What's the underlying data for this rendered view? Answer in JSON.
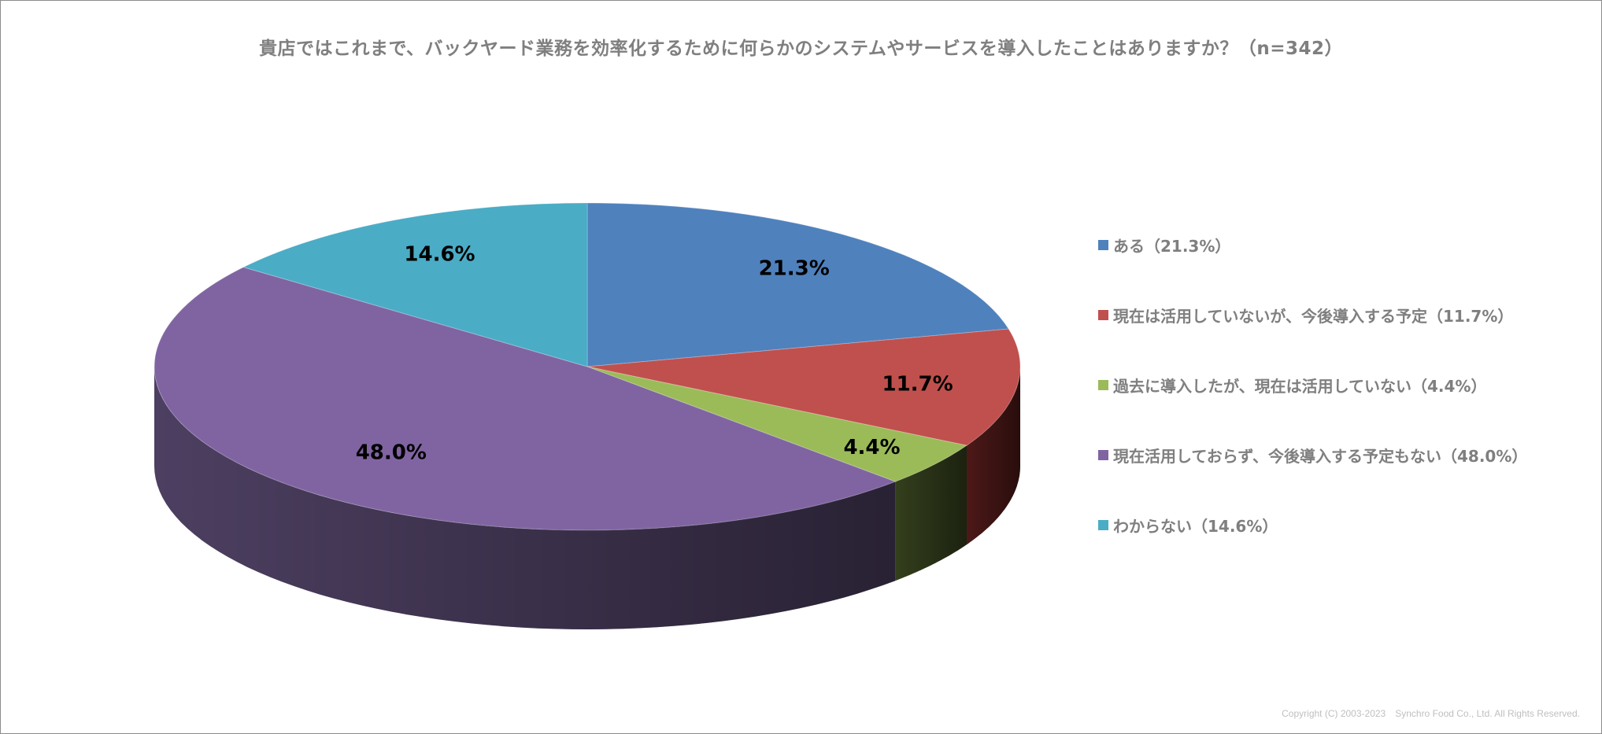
{
  "chart_data": {
    "type": "pie",
    "title": "貴店ではこれまで、バックヤード業務を効率化するために何らかのシステムやサービスを導入したことはありますか？（n=342）",
    "slices": [
      {
        "label": "ある（21.3%）",
        "value": 21.3,
        "data_label": "21.3%",
        "color": "#4f81bd",
        "side_color": "#2b4a6f"
      },
      {
        "label": "現在は活用していないが、今後導入する予定（11.7%）",
        "value": 11.7,
        "data_label": "11.7%",
        "color": "#c0504d",
        "side_color": "#5a1d1c"
      },
      {
        "label": "過去に導入したが、現在は活用していない（4.4%）",
        "value": 4.4,
        "data_label": "4.4%",
        "color": "#9bbb59",
        "side_color": "#3d4a22"
      },
      {
        "label": "現在活用しておらず、今後導入する予定もない（48.0%）",
        "value": 48.0,
        "data_label": "48.0%",
        "color": "#8064a2",
        "side_color": "#5a4a72"
      },
      {
        "label": "わからない（14.6%）",
        "value": 14.6,
        "data_label": "14.6%",
        "color": "#4bacc6",
        "side_color": "#2a6877"
      }
    ],
    "legend_position": "right"
  },
  "footer": {
    "copyright": "Copyright (C) 2003-2023　Synchro Food Co., Ltd. All Rights Reserved."
  }
}
